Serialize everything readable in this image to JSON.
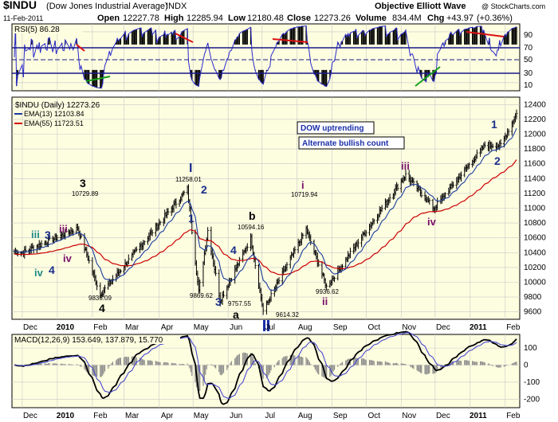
{
  "header": {
    "symbol": "$INDU",
    "name": "(Dow Jones Industrial Average)",
    "exchange": "INDX",
    "branding": "Objective Elliott Wave",
    "copyright": "@ StockCharts.com",
    "date": "11-Feb-2011",
    "open_label": "Open",
    "open": "12227.78",
    "high_label": "High",
    "high": "12285.94",
    "low_label": "Low",
    "low": "12180.48",
    "close_label": "Close",
    "close": "12273.26",
    "volume_label": "Volume",
    "volume": "834.4M",
    "chg_label": "Chg",
    "chg": "+43.97",
    "chg_pct": "(+0.36%)"
  },
  "rsi_panel": {
    "title": "RSI(5) 86.28",
    "levels": [
      "90",
      "70",
      "50",
      "30",
      "10"
    ]
  },
  "price_panel": {
    "legend_symbol": "$INDU (Daily) 12273.26",
    "legend_ema13": "EMA(13) 12103.84",
    "legend_ema55": "EMA(55) 11723.51",
    "callout_1": "DOW uptrending",
    "callout_2": "Alternate bullish count",
    "y_ticks": [
      "12400",
      "12200",
      "12000",
      "11800",
      "11600",
      "11400",
      "11200",
      "11000",
      "10800",
      "10600",
      "10400",
      "10200",
      "10000",
      "9800",
      "9600"
    ],
    "price_labels": {
      "p11258": "11258.01",
      "p10729": "10729.89",
      "p10594": "10594.16",
      "p10719": "10719.94",
      "p9835": "9835.09",
      "p9869": "9869.62",
      "p9757": "9757.55",
      "p9614": "9614.32",
      "p9936": "9936.62"
    }
  },
  "macd_panel": {
    "title": "MACD(12,26,9) 153.649, 137.879, 15.770",
    "y_ticks": [
      "100",
      "0",
      "-100",
      "-200"
    ]
  },
  "x_axis_labels": [
    "Dec",
    "2010",
    "Feb",
    "Mar",
    "Apr",
    "May",
    "Jun",
    "Jul",
    "Aug",
    "Sep",
    "Oct",
    "Nov",
    "Dec",
    "2011",
    "Feb"
  ],
  "wave_labels": {
    "w_I": "I",
    "w_2a": "2",
    "w_1a": "1",
    "w_3a": "3",
    "w_4a": "4",
    "w_b": "b",
    "w_a": "a",
    "w_i": "i",
    "w_ii": "ii",
    "w_iii_top": "iii",
    "w_iv_r": "iv",
    "w_1r": "1",
    "w_2r": "2",
    "w_3_left": "3",
    "w_4_left": "4",
    "w_iii_left": "iii",
    "w_3_small": "3",
    "w_iii_small": "iii",
    "w_iv_left": "iv",
    "w_iv_small": "iv",
    "w_4_small": "4"
  },
  "colors": {
    "panel_bg": "#fdfde0",
    "grid": "#c8c8c8",
    "price": "#000000",
    "ema13": "#1a3c9e",
    "ema55": "#cc0000",
    "rsi": "#2b2bcc",
    "macd": "#000000",
    "signal": "#4848d0",
    "hist": "#8a8a8a",
    "wave_navy": "#1a2f8a",
    "wave_purple": "#7a0f6b",
    "wave_teal": "#1e8a8a",
    "trend_red": "#dd1111",
    "trend_green": "#18a018"
  },
  "chart_data": {
    "type": "ohlc",
    "title": "$INDU (Dow Jones Industrial Average) INDX",
    "ylim": [
      9500,
      12400
    ],
    "x_labels": [
      "Dec",
      "2010",
      "Feb",
      "Mar",
      "Apr",
      "May",
      "Jun",
      "Jul",
      "Aug",
      "Sep",
      "Oct",
      "Nov",
      "Dec",
      "2011",
      "Feb"
    ],
    "anchors": [
      {
        "date": "2009-12-01",
        "close": 10400
      },
      {
        "date": "2010-01-19",
        "close": 10729.89
      },
      {
        "date": "2010-02-08",
        "close": 9835.09
      },
      {
        "date": "2010-04-26",
        "close": 11258.01
      },
      {
        "date": "2010-05-06",
        "close": 9869.62
      },
      {
        "date": "2010-05-14",
        "close": 10700
      },
      {
        "date": "2010-05-25",
        "close": 9757.55
      },
      {
        "date": "2010-06-21",
        "close": 10594.16
      },
      {
        "date": "2010-07-02",
        "close": 9614.32
      },
      {
        "date": "2010-08-09",
        "close": 10719.94
      },
      {
        "date": "2010-08-27",
        "close": 9936.62
      },
      {
        "date": "2010-11-05",
        "close": 11450
      },
      {
        "date": "2010-11-30",
        "close": 11000
      },
      {
        "date": "2011-01-14",
        "close": 11850
      },
      {
        "date": "2011-01-28",
        "close": 11850
      },
      {
        "date": "2011-02-11",
        "close": 12273.26
      }
    ],
    "ema13_last": 12103.84,
    "ema55_last": 11723.51,
    "rsi": {
      "period": 5,
      "last": 86.28,
      "levels": [
        90,
        70,
        50,
        30,
        10
      ]
    },
    "macd": {
      "params": [
        12,
        26,
        9
      ],
      "macd": 153.649,
      "signal": 137.879,
      "hist": 15.77,
      "ylim": [
        -250,
        180
      ]
    },
    "annotations": [
      {
        "text": "DOW uptrending"
      },
      {
        "text": "Alternate bullish count"
      }
    ]
  }
}
